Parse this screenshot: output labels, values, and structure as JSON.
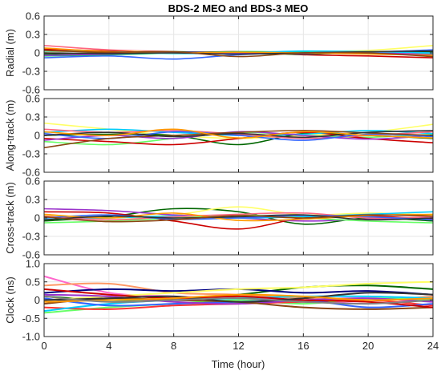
{
  "chart_data": {
    "type": "line",
    "title": "BDS-2 MEO and BDS-3 MEO",
    "xlabel": "Time (hour)",
    "xlim": [
      0,
      24
    ],
    "xticks": [
      "0",
      "4",
      "8",
      "12",
      "16",
      "20",
      "24"
    ],
    "grid": true,
    "legend": "none",
    "panels": [
      {
        "ylabel": "Radial (m)",
        "ylim": [
          -0.6,
          0.6
        ],
        "yticks": [
          "0.6",
          "0.3",
          "0",
          "-0.3",
          "-0.6"
        ],
        "series": [
          {
            "color": "#ff6680",
            "values": [
              0.12,
              0.05,
              0.02,
              0.0,
              -0.01,
              0.0,
              0.01
            ]
          },
          {
            "color": "#ffff66",
            "values": [
              0.02,
              0.03,
              0.01,
              -0.01,
              0.02,
              0.04,
              0.12
            ]
          },
          {
            "color": "#3366ff",
            "values": [
              -0.08,
              -0.05,
              -0.1,
              -0.03,
              0.0,
              0.01,
              0.05
            ]
          },
          {
            "color": "#cc0000",
            "values": [
              0.06,
              0.03,
              0.0,
              0.02,
              -0.03,
              -0.05,
              -0.08
            ]
          },
          {
            "color": "#00cc66",
            "values": [
              -0.05,
              -0.03,
              0.0,
              0.02,
              0.01,
              -0.01,
              -0.02
            ]
          },
          {
            "color": "#006600",
            "values": [
              -0.02,
              0.0,
              0.02,
              0.0,
              -0.02,
              0.01,
              0.02
            ]
          },
          {
            "color": "#00ccff",
            "values": [
              0.03,
              0.02,
              -0.01,
              0.0,
              0.03,
              0.02,
              0.0
            ]
          },
          {
            "color": "#9933cc",
            "values": [
              -0.04,
              -0.02,
              0.01,
              0.0,
              -0.01,
              0.0,
              -0.03
            ]
          },
          {
            "color": "#ff9900",
            "values": [
              0.08,
              0.02,
              0.0,
              0.01,
              0.0,
              -0.02,
              -0.04
            ]
          },
          {
            "color": "#333333",
            "values": [
              0.0,
              -0.01,
              0.0,
              -0.02,
              0.0,
              0.02,
              0.03
            ]
          },
          {
            "color": "#8b4513",
            "values": [
              0.04,
              0.01,
              0.02,
              -0.06,
              0.0,
              0.0,
              -0.06
            ]
          }
        ]
      },
      {
        "ylabel": "Along-track (m)",
        "ylim": [
          -0.6,
          0.6
        ],
        "yticks": [
          "0.6",
          "0.3",
          "0",
          "-0.3",
          "-0.6"
        ],
        "series": [
          {
            "color": "#ffff66",
            "values": [
              0.2,
              0.1,
              0.0,
              -0.05,
              0.0,
              0.05,
              0.18
            ]
          },
          {
            "color": "#66ff66",
            "values": [
              -0.1,
              -0.15,
              -0.05,
              0.05,
              0.0,
              -0.03,
              0.02
            ]
          },
          {
            "color": "#006600",
            "values": [
              0.0,
              0.02,
              0.0,
              -0.15,
              0.03,
              0.0,
              -0.05
            ]
          },
          {
            "color": "#cc0000",
            "values": [
              -0.05,
              -0.1,
              -0.15,
              -0.05,
              0.05,
              -0.05,
              -0.12
            ]
          },
          {
            "color": "#00ccff",
            "values": [
              0.05,
              0.1,
              0.05,
              0.0,
              0.02,
              0.08,
              0.03
            ]
          },
          {
            "color": "#ff6680",
            "values": [
              0.1,
              0.05,
              0.08,
              0.02,
              -0.05,
              0.0,
              0.06
            ]
          },
          {
            "color": "#9933cc",
            "values": [
              -0.08,
              0.0,
              -0.05,
              0.06,
              0.0,
              -0.06,
              0.0
            ]
          },
          {
            "color": "#3366ff",
            "values": [
              0.03,
              -0.05,
              0.06,
              0.0,
              -0.08,
              0.02,
              -0.02
            ]
          },
          {
            "color": "#8b4513",
            "values": [
              -0.2,
              -0.05,
              0.0,
              0.05,
              0.08,
              0.04,
              0.0
            ]
          },
          {
            "color": "#333333",
            "values": [
              0.0,
              0.05,
              -0.02,
              0.03,
              -0.03,
              0.05,
              0.08
            ]
          },
          {
            "color": "#ff9900",
            "values": [
              0.06,
              0.0,
              0.1,
              -0.04,
              0.06,
              0.0,
              -0.04
            ]
          }
        ]
      },
      {
        "ylabel": "Cross-track (m)",
        "ylim": [
          -0.6,
          0.6
        ],
        "yticks": [
          "0.6",
          "0.3",
          "0",
          "-0.3",
          "-0.6"
        ],
        "series": [
          {
            "color": "#006600",
            "values": [
              -0.05,
              0.02,
              0.15,
              0.1,
              -0.1,
              0.0,
              -0.05
            ]
          },
          {
            "color": "#ffff66",
            "values": [
              0.05,
              0.0,
              0.05,
              0.18,
              0.05,
              0.08,
              0.05
            ]
          },
          {
            "color": "#cc0000",
            "values": [
              0.1,
              0.08,
              -0.05,
              -0.18,
              0.0,
              0.03,
              -0.02
            ]
          },
          {
            "color": "#9933cc",
            "values": [
              0.15,
              0.12,
              0.05,
              0.0,
              -0.05,
              -0.02,
              0.0
            ]
          },
          {
            "color": "#00ccff",
            "values": [
              -0.02,
              0.0,
              0.03,
              0.0,
              0.02,
              0.06,
              0.1
            ]
          },
          {
            "color": "#66ff66",
            "values": [
              -0.08,
              -0.05,
              0.0,
              0.05,
              0.0,
              -0.05,
              -0.08
            ]
          },
          {
            "color": "#ff6680",
            "values": [
              0.03,
              -0.03,
              0.02,
              0.06,
              0.08,
              0.0,
              0.02
            ]
          },
          {
            "color": "#3366ff",
            "values": [
              0.0,
              0.05,
              -0.02,
              0.0,
              0.04,
              0.02,
              -0.03
            ]
          },
          {
            "color": "#ff9900",
            "values": [
              0.06,
              0.0,
              0.08,
              -0.04,
              -0.02,
              0.04,
              0.06
            ]
          },
          {
            "color": "#333333",
            "values": [
              -0.03,
              0.03,
              0.0,
              0.02,
              0.05,
              -0.03,
              0.0
            ]
          },
          {
            "color": "#8b4513",
            "values": [
              0.02,
              -0.06,
              -0.03,
              0.04,
              0.0,
              0.05,
              0.03
            ]
          }
        ]
      },
      {
        "ylabel": "Clock (ns)",
        "ylim": [
          -1.0,
          1.0
        ],
        "yticks": [
          "1.0",
          "0.5",
          "0",
          "-0.5",
          "-1.0"
        ],
        "series": [
          {
            "color": "#ff66cc",
            "values": [
              0.65,
              0.2,
              0.1,
              0.05,
              0.0,
              -0.1,
              0.05
            ]
          },
          {
            "color": "#ff9966",
            "values": [
              0.4,
              0.45,
              0.2,
              0.15,
              0.05,
              0.0,
              0.1
            ]
          },
          {
            "color": "#006600",
            "values": [
              0.1,
              0.0,
              0.05,
              0.15,
              0.35,
              0.4,
              0.3
            ]
          },
          {
            "color": "#000080",
            "values": [
              0.2,
              0.3,
              0.25,
              0.3,
              0.2,
              0.25,
              0.15
            ]
          },
          {
            "color": "#66ff66",
            "values": [
              -0.35,
              -0.2,
              -0.1,
              0.0,
              -0.1,
              0.05,
              0.0
            ]
          },
          {
            "color": "#ff3333",
            "values": [
              -0.2,
              -0.25,
              -0.15,
              -0.1,
              -0.05,
              0.0,
              -0.15
            ]
          },
          {
            "color": "#ffff66",
            "values": [
              0.0,
              0.1,
              0.2,
              0.3,
              0.35,
              0.45,
              0.5
            ]
          },
          {
            "color": "#00ccff",
            "values": [
              -0.3,
              -0.1,
              0.0,
              0.05,
              0.1,
              0.1,
              0.05
            ]
          },
          {
            "color": "#3366ff",
            "values": [
              0.05,
              -0.15,
              -0.1,
              -0.05,
              0.0,
              -0.2,
              -0.1
            ]
          },
          {
            "color": "#9933cc",
            "values": [
              0.15,
              0.1,
              -0.05,
              -0.1,
              0.0,
              0.05,
              -0.05
            ]
          },
          {
            "color": "#8b4513",
            "values": [
              -0.1,
              0.05,
              0.0,
              -0.05,
              -0.2,
              -0.25,
              -0.2
            ]
          },
          {
            "color": "#cc0000",
            "values": [
              0.3,
              0.15,
              0.05,
              0.1,
              0.0,
              -0.05,
              -0.2
            ]
          },
          {
            "color": "#333333",
            "values": [
              0.0,
              0.05,
              0.1,
              -0.05,
              0.05,
              0.2,
              0.15
            ]
          },
          {
            "color": "#ff9900",
            "values": [
              -0.05,
              0.0,
              0.05,
              0.15,
              0.1,
              0.0,
              0.05
            ]
          },
          {
            "color": "#808080",
            "values": [
              0.1,
              -0.05,
              0.0,
              0.05,
              -0.05,
              -0.1,
              0.0
            ]
          }
        ]
      }
    ]
  }
}
